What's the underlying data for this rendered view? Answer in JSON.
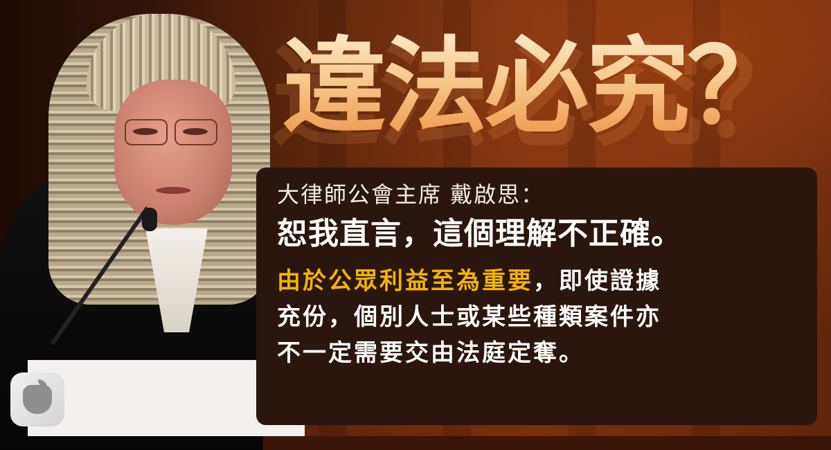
{
  "title": "違法必究？",
  "quote": {
    "speaker": "大律師公會主席 戴啟思：",
    "headline": "恕我直言，這個理解不正確。",
    "body_highlight": "由於公眾利益至為重要",
    "body_rest_line1": "，即使證據",
    "body_line2": "充份，個別人士或某些種類案件亦",
    "body_line3": "不一定需要交由法庭定奪。"
  },
  "colors": {
    "background": "#3a1608",
    "quote_box": "#2a160e",
    "highlight": "#f5b400",
    "title_top": "#fff2d6",
    "title_bottom": "#e98b3f"
  },
  "icons": {
    "logo": "apple-daily-logo-icon"
  }
}
